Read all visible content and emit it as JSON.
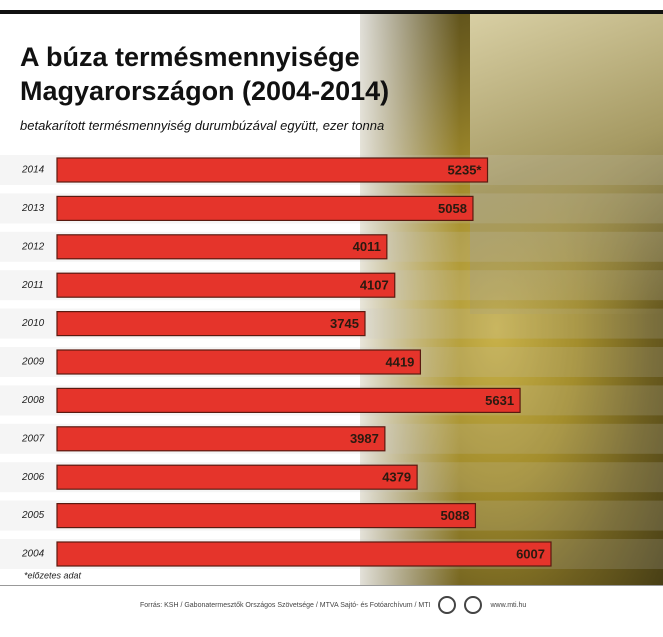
{
  "chart_data": {
    "type": "bar",
    "orientation": "horizontal",
    "title": "A búza termésmennyisége Magyarországon (2004-2014)",
    "subtitle": "betakarított termésmennyiség durumbúzával együtt, ezer tonna",
    "categories": [
      "2014",
      "2013",
      "2012",
      "2011",
      "2010",
      "2009",
      "2008",
      "2007",
      "2006",
      "2005",
      "2004"
    ],
    "values": [
      5235,
      5058,
      4011,
      4107,
      3745,
      4419,
      5631,
      3987,
      4379,
      5088,
      6007
    ],
    "value_labels": [
      "5235*",
      "5058",
      "4011",
      "4107",
      "3745",
      "4419",
      "5631",
      "3987",
      "4379",
      "5088",
      "6007"
    ],
    "color": "#e5342b",
    "note": "*előzetes adat",
    "source": "Forrás: KSH / Gabonatermesztők Országos Szövetsége / MTVA Sajtó- és Fotóarchívum / MTI",
    "website": "www.mti.hu"
  }
}
